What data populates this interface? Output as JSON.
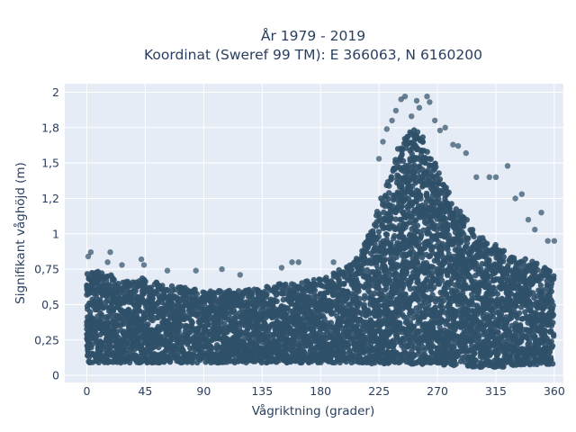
{
  "chart_data": {
    "type": "scatter",
    "title_line1": "År 1979 - 2019",
    "title_line2": "Koordinat (Sweref 99 TM): E 366063, N 6160200",
    "xlabel": "Vågriktning (grader)",
    "ylabel": "Signifikant våghöjd (m)",
    "xlim": [
      -17,
      367
    ],
    "ylim": [
      -0.05,
      2.06
    ],
    "x_ticks": [
      0,
      45,
      90,
      135,
      180,
      225,
      270,
      315,
      360
    ],
    "x_tick_labels": [
      "0",
      "45",
      "90",
      "135",
      "180",
      "225",
      "270",
      "315",
      "360"
    ],
    "y_ticks": [
      0,
      0.25,
      0.5,
      0.75,
      1,
      1.25,
      1.5,
      1.75,
      2
    ],
    "y_tick_labels": [
      "0",
      "0,25",
      "0,5",
      "0,75",
      "1",
      "1,2",
      "1,5",
      "1,8",
      "2"
    ],
    "grid": true,
    "marker_color": "#2f5068",
    "plot_bg": "#e5ecf6",
    "envelope": {
      "direction": [
        0,
        10,
        20,
        30,
        45,
        60,
        75,
        90,
        105,
        120,
        135,
        150,
        165,
        180,
        190,
        200,
        210,
        220,
        230,
        240,
        245,
        250,
        255,
        260,
        265,
        270,
        280,
        290,
        300,
        310,
        320,
        330,
        340,
        350,
        360
      ],
      "lower_height": [
        0.09,
        0.09,
        0.09,
        0.09,
        0.09,
        0.09,
        0.09,
        0.09,
        0.09,
        0.09,
        0.09,
        0.09,
        0.09,
        0.09,
        0.09,
        0.09,
        0.09,
        0.08,
        0.08,
        0.08,
        0.08,
        0.08,
        0.08,
        0.08,
        0.08,
        0.08,
        0.07,
        0.07,
        0.06,
        0.06,
        0.06,
        0.07,
        0.07,
        0.08,
        0.08
      ],
      "upper_height": [
        0.72,
        0.74,
        0.7,
        0.68,
        0.69,
        0.64,
        0.62,
        0.6,
        0.6,
        0.6,
        0.62,
        0.65,
        0.66,
        0.68,
        0.72,
        0.77,
        0.85,
        1.05,
        1.35,
        1.6,
        1.7,
        1.75,
        1.72,
        1.65,
        1.55,
        1.45,
        1.3,
        1.15,
        1.0,
        0.95,
        0.9,
        0.85,
        0.82,
        0.78,
        0.72
      ]
    },
    "outliers": [
      [
        1,
        0.84
      ],
      [
        3,
        0.87
      ],
      [
        16,
        0.8
      ],
      [
        18,
        0.87
      ],
      [
        27,
        0.78
      ],
      [
        42,
        0.82
      ],
      [
        44,
        0.78
      ],
      [
        62,
        0.74
      ],
      [
        84,
        0.74
      ],
      [
        104,
        0.75
      ],
      [
        118,
        0.71
      ],
      [
        150,
        0.76
      ],
      [
        158,
        0.8
      ],
      [
        163,
        0.8
      ],
      [
        190,
        0.8
      ],
      [
        225,
        1.53
      ],
      [
        228,
        1.65
      ],
      [
        231,
        1.74
      ],
      [
        235,
        1.8
      ],
      [
        238,
        1.87
      ],
      [
        242,
        1.95
      ],
      [
        245,
        1.97
      ],
      [
        250,
        1.83
      ],
      [
        254,
        1.94
      ],
      [
        256,
        1.89
      ],
      [
        262,
        1.97
      ],
      [
        264,
        1.93
      ],
      [
        268,
        1.8
      ],
      [
        272,
        1.73
      ],
      [
        276,
        1.75
      ],
      [
        282,
        1.63
      ],
      [
        286,
        1.62
      ],
      [
        292,
        1.57
      ],
      [
        300,
        1.4
      ],
      [
        310,
        1.4
      ],
      [
        315,
        1.4
      ],
      [
        324,
        1.48
      ],
      [
        330,
        1.25
      ],
      [
        335,
        1.28
      ],
      [
        340,
        1.1
      ],
      [
        345,
        1.03
      ],
      [
        350,
        1.15
      ],
      [
        355,
        0.95
      ],
      [
        360,
        0.95
      ]
    ]
  }
}
